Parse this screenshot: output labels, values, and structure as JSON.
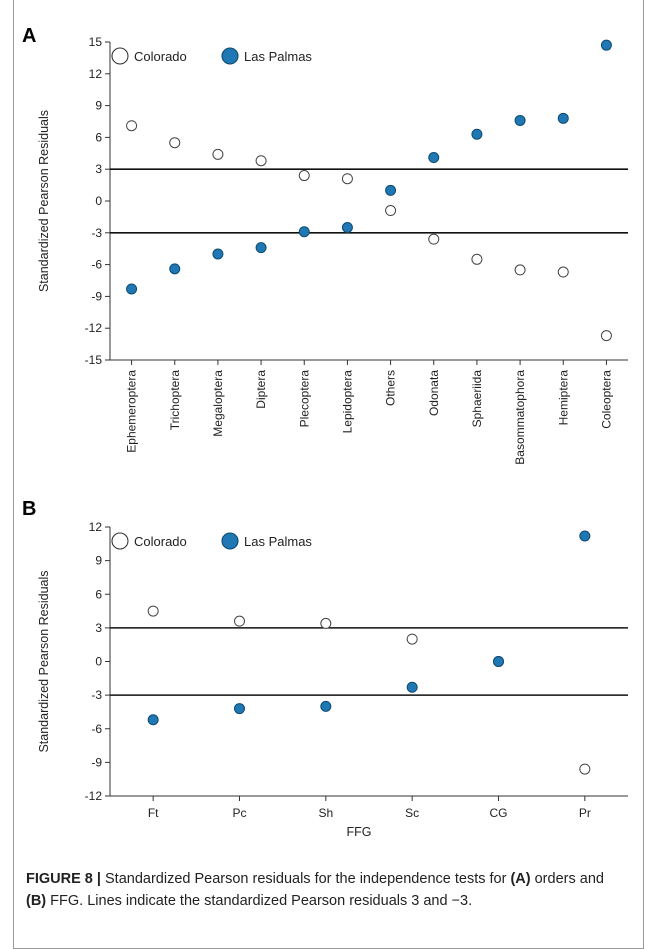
{
  "chart_data": [
    {
      "panel": "A",
      "type": "scatter",
      "ylabel": "Standardized Pearson Residuals",
      "xlabel": "",
      "ylim": [
        -15,
        15
      ],
      "yticks": [
        15,
        12,
        9,
        6,
        3,
        0,
        -3,
        -6,
        -9,
        -12,
        -15
      ],
      "reference_lines": [
        3,
        -3
      ],
      "legend_position": "top-left",
      "categories": [
        "Ephemeroptera",
        "Trichoptera",
        "Megaloptera",
        "Diptera",
        "Plecoptera",
        "Lepidoptera",
        "Others",
        "Odonata",
        "Sphaeriida",
        "Basommatophora",
        "Hemiptera",
        "Coleoptera"
      ],
      "series": [
        {
          "name": "Colorado",
          "marker": "open",
          "color": "#ffffff",
          "values": [
            7.1,
            5.5,
            4.4,
            3.8,
            2.4,
            2.1,
            -0.9,
            -3.6,
            -5.5,
            -6.5,
            -6.7,
            -12.7
          ]
        },
        {
          "name": "Las Palmas",
          "marker": "filled",
          "color": "#1f78b4",
          "values": [
            -8.3,
            -6.4,
            -5.0,
            -4.4,
            -2.9,
            -2.5,
            1.0,
            4.1,
            6.3,
            7.6,
            7.8,
            14.7
          ]
        }
      ]
    },
    {
      "panel": "B",
      "type": "scatter",
      "ylabel": "Standardized Pearson Residuals",
      "xlabel": "FFG",
      "ylim": [
        -12,
        12
      ],
      "yticks": [
        12,
        9,
        6,
        3,
        0,
        -3,
        -6,
        -9,
        -12
      ],
      "reference_lines": [
        3,
        -3
      ],
      "legend_position": "top-left",
      "categories": [
        "Ft",
        "Pc",
        "Sh",
        "Sc",
        "CG",
        "Pr"
      ],
      "series": [
        {
          "name": "Colorado",
          "marker": "open",
          "color": "#ffffff",
          "values": [
            4.5,
            3.6,
            3.4,
            2.0,
            0.0,
            -9.6
          ]
        },
        {
          "name": "Las Palmas",
          "marker": "filled",
          "color": "#1f78b4",
          "values": [
            -5.2,
            -4.2,
            -4.0,
            -2.3,
            0.0,
            11.2
          ]
        }
      ]
    }
  ],
  "caption": {
    "figure_label": "FIGURE 8 |",
    "text_1": " Standardized Pearson residuals for the independence tests for ",
    "bold_a": "(A)",
    "text_2": " orders and ",
    "bold_b": "(B)",
    "text_3": " FFG. Lines indicate the standardized Pearson residuals 3 and −3."
  }
}
